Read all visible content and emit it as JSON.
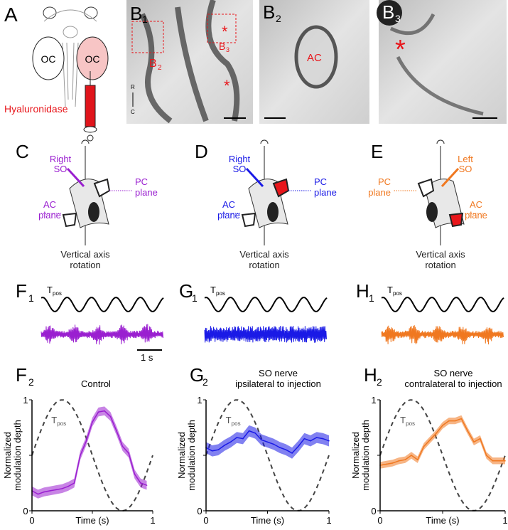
{
  "panels": {
    "A": {
      "label": "A",
      "oc_left": "OC",
      "oc_right": "OC",
      "drug": "Hyaluronidase"
    },
    "B1": {
      "label": "B",
      "sub": "1",
      "marker_b2": "B",
      "marker_b2_sub": "2",
      "marker_b3": "B",
      "marker_b3_sub": "3",
      "axis_r": "R",
      "axis_c": "C",
      "asterisk": "*"
    },
    "B2": {
      "label": "B",
      "sub": "2",
      "region": "AC"
    },
    "B3": {
      "label": "B",
      "sub": "3",
      "asterisk": "*"
    },
    "C": {
      "label": "C",
      "so": [
        "Right",
        "SO"
      ],
      "pc": [
        "PC",
        "plane"
      ],
      "ac": [
        "AC",
        "plane"
      ],
      "axis": [
        "Vertical axis",
        "rotation"
      ]
    },
    "D": {
      "label": "D",
      "so": [
        "Right",
        "SO"
      ],
      "pc": [
        "PC",
        "plane"
      ],
      "ac": [
        "AC",
        "plane"
      ],
      "axis": [
        "Vertical axis",
        "rotation"
      ]
    },
    "E": {
      "label": "E",
      "so": [
        "Left",
        "SO"
      ],
      "pc": [
        "PC",
        "plane"
      ],
      "ac": [
        "AC",
        "plane"
      ],
      "axis": [
        "Vertical axis",
        "rotation"
      ]
    },
    "F1": {
      "label": "F",
      "sub": "1",
      "stim": "T",
      "stim_sub": "pos",
      "scale": "1 s"
    },
    "G1": {
      "label": "G",
      "sub": "1",
      "stim": "T",
      "stim_sub": "pos"
    },
    "H1": {
      "label": "H",
      "sub": "1",
      "stim": "T",
      "stim_sub": "pos"
    }
  },
  "colors": {
    "control": "#9a1fd0",
    "ipsi": "#1a1ae6",
    "contra": "#f07820",
    "red": "#e8161b"
  },
  "chart_data": [
    {
      "type": "line",
      "panel": "F",
      "sub": "2",
      "title": "Control",
      "xlabel": "Time (s)",
      "ylabel": [
        "Normalized",
        "modulation depth"
      ],
      "xlim": [
        0,
        1
      ],
      "ylim": [
        0,
        1
      ],
      "xticks": [
        "0",
        "1"
      ],
      "yticks": [
        "0",
        "1"
      ],
      "reference": {
        "name": "T",
        "sub": "pos"
      },
      "x": [
        0,
        0.05,
        0.1,
        0.15,
        0.2,
        0.25,
        0.3,
        0.35,
        0.4,
        0.45,
        0.5,
        0.55,
        0.6,
        0.65,
        0.7,
        0.75,
        0.8,
        0.85,
        0.9,
        0.95
      ],
      "y": [
        0.18,
        0.15,
        0.17,
        0.18,
        0.19,
        0.2,
        0.22,
        0.25,
        0.5,
        0.63,
        0.8,
        0.89,
        0.9,
        0.85,
        0.72,
        0.58,
        0.52,
        0.33,
        0.25,
        0.23
      ],
      "band": 0.04,
      "color": "#9a1fd0"
    },
    {
      "type": "line",
      "panel": "G",
      "sub": "2",
      "title": [
        "SO nerve",
        "ipsilateral to injection"
      ],
      "xlabel": "Time (s)",
      "ylabel": [
        "Normalized",
        "modulation depth"
      ],
      "xlim": [
        0,
        1
      ],
      "ylim": [
        0,
        1
      ],
      "xticks": [
        "0",
        "1"
      ],
      "yticks": [
        "0",
        "1"
      ],
      "reference": {
        "name": "T",
        "sub": "pos"
      },
      "x": [
        0,
        0.05,
        0.1,
        0.15,
        0.2,
        0.25,
        0.3,
        0.35,
        0.4,
        0.45,
        0.5,
        0.55,
        0.6,
        0.65,
        0.7,
        0.75,
        0.8,
        0.85,
        0.9,
        0.95,
        1
      ],
      "y": [
        0.57,
        0.54,
        0.55,
        0.59,
        0.62,
        0.66,
        0.65,
        0.72,
        0.7,
        0.64,
        0.62,
        0.6,
        0.57,
        0.55,
        0.52,
        0.58,
        0.65,
        0.63,
        0.66,
        0.65,
        0.63
      ],
      "band": 0.05,
      "color": "#1a1ae6"
    },
    {
      "type": "line",
      "panel": "H",
      "sub": "2",
      "title": [
        "SO nerve",
        "contralateral to injection"
      ],
      "xlabel": "Time (s)",
      "ylabel": [
        "Normalized",
        "modulation depth"
      ],
      "xlim": [
        0,
        1
      ],
      "ylim": [
        0,
        1
      ],
      "xticks": [
        "0",
        "1"
      ],
      "yticks": [
        "0",
        "1"
      ],
      "reference": {
        "name": "T",
        "sub": "pos"
      },
      "x": [
        0,
        0.05,
        0.1,
        0.15,
        0.2,
        0.25,
        0.3,
        0.35,
        0.4,
        0.45,
        0.5,
        0.55,
        0.6,
        0.65,
        0.7,
        0.75,
        0.8,
        0.85,
        0.9,
        0.95,
        1
      ],
      "y": [
        0.41,
        0.42,
        0.43,
        0.45,
        0.46,
        0.5,
        0.46,
        0.58,
        0.64,
        0.7,
        0.77,
        0.81,
        0.81,
        0.83,
        0.72,
        0.62,
        0.65,
        0.5,
        0.45,
        0.45,
        0.45
      ],
      "band": 0.03,
      "color": "#f07820"
    }
  ]
}
